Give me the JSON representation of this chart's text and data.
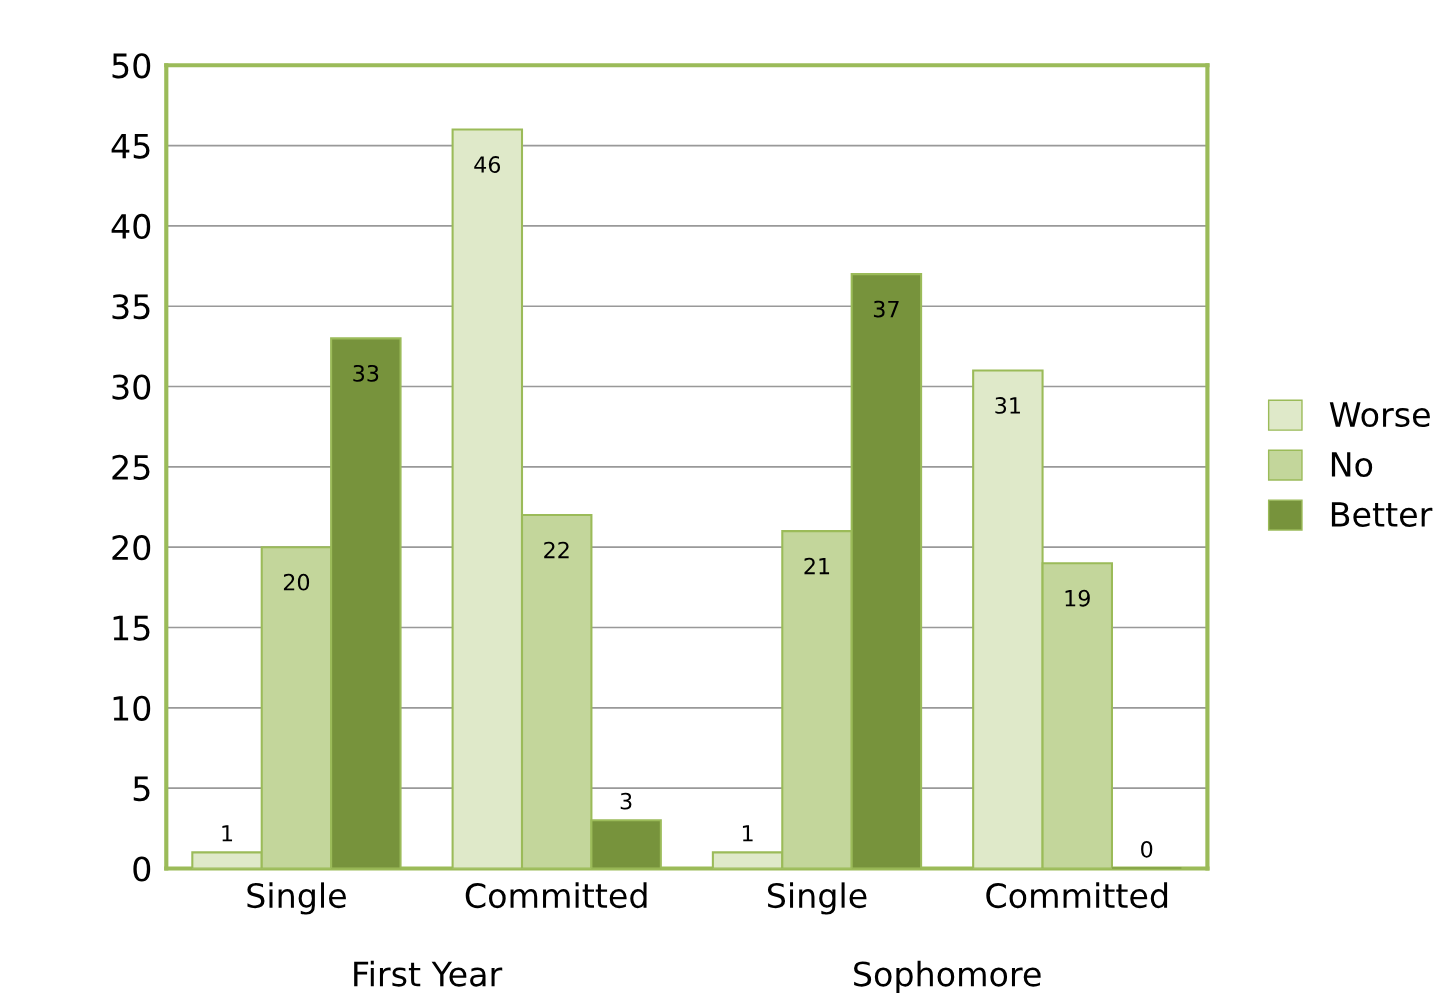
{
  "chart_data": {
    "type": "bar",
    "categories": [
      "Single",
      "Committed",
      "Single",
      "Committed"
    ],
    "series": [
      {
        "name": "Worse",
        "color": "#dfe9c9",
        "values": [
          1,
          46,
          1,
          31
        ]
      },
      {
        "name": "No",
        "color": "#c3d69b",
        "values": [
          20,
          22,
          21,
          19
        ]
      },
      {
        "name": "Better",
        "color": "#77933c",
        "values": [
          33,
          3,
          37,
          0
        ]
      }
    ],
    "annotations": [
      "First Year",
      "Sophomore"
    ],
    "ylim": [
      0,
      50
    ],
    "yticks": [
      0,
      5,
      10,
      15,
      20,
      25,
      30,
      35,
      40,
      45,
      50
    ],
    "grid": "y",
    "legend": "right",
    "data_labels": true
  }
}
